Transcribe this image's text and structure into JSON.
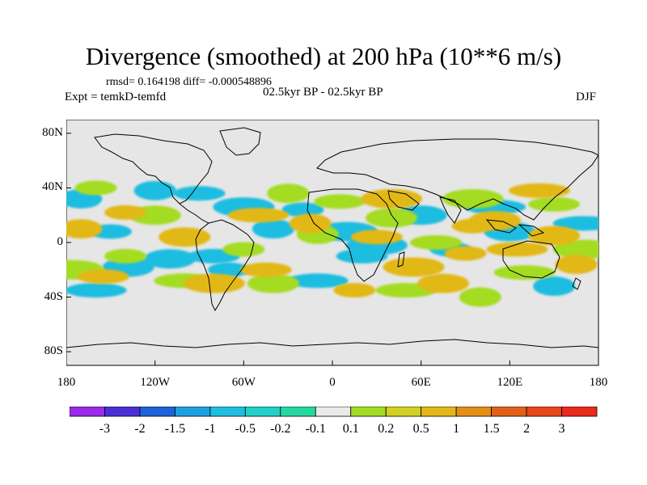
{
  "title": "Divergence (smoothed) at 200 hPa (10**6 m/s)",
  "stats": {
    "rmsd_label": "rmsd= 0.164198",
    "diff_label": "diff= -0.000548896"
  },
  "experiment": "Expt = temkD-temfd",
  "period": "02.5kyr BP - 02.5kyr BP",
  "season": "DJF",
  "axes": {
    "lat_labels": [
      "80N",
      "40N",
      "0",
      "40S",
      "80S"
    ],
    "lon_labels": [
      "180",
      "120W",
      "60W",
      "0",
      "60E",
      "120E",
      "180"
    ]
  },
  "colorbar": {
    "labels": [
      "-3",
      "-2",
      "-1.5",
      "-1",
      "-0.5",
      "-0.2",
      "-0.1",
      "0.1",
      "0.2",
      "0.5",
      "1",
      "1.5",
      "2",
      "3"
    ],
    "colors": [
      "#9b2be8",
      "#4b30d8",
      "#1f62d8",
      "#1f9ee0",
      "#1fbde0",
      "#22d0c8",
      "#25d8a0",
      "#eaeaea",
      "#a4dc22",
      "#d2d020",
      "#e2b818",
      "#e28e18",
      "#e2601a",
      "#e8461c",
      "#ea2a1a"
    ]
  },
  "map": {
    "background": "#e6e6e6",
    "fields": {
      "cyan_bands": [
        [
          -150,
          8
        ],
        [
          -138,
          -18
        ],
        [
          -160,
          -35
        ],
        [
          -120,
          38
        ],
        [
          -90,
          36
        ],
        [
          -60,
          26
        ],
        [
          -20,
          24
        ],
        [
          60,
          20
        ],
        [
          110,
          26
        ],
        [
          -40,
          10
        ],
        [
          20,
          -10
        ],
        [
          30,
          -2
        ],
        [
          -70,
          -20
        ],
        [
          -110,
          -12
        ],
        [
          170,
          14
        ],
        [
          150,
          -32
        ],
        [
          -80,
          -10
        ],
        [
          10,
          8
        ],
        [
          80,
          -5
        ],
        [
          120,
          8
        ],
        [
          -10,
          -28
        ],
        [
          -170,
          32
        ]
      ],
      "green_bands": [
        [
          -160,
          40
        ],
        [
          -120,
          20
        ],
        [
          -100,
          -28
        ],
        [
          -30,
          36
        ],
        [
          5,
          30
        ],
        [
          95,
          32
        ],
        [
          -140,
          -10
        ],
        [
          -40,
          -30
        ],
        [
          50,
          -35
        ],
        [
          100,
          -40
        ],
        [
          150,
          28
        ],
        [
          170,
          -5
        ],
        [
          -60,
          -5
        ],
        [
          40,
          18
        ],
        [
          130,
          -22
        ],
        [
          -10,
          6
        ],
        [
          70,
          0
        ],
        [
          -175,
          -20
        ]
      ],
      "orange_bands": [
        [
          -140,
          22
        ],
        [
          -100,
          4
        ],
        [
          -50,
          20
        ],
        [
          -15,
          14
        ],
        [
          30,
          4
        ],
        [
          55,
          -18
        ],
        [
          90,
          -8
        ],
        [
          110,
          16
        ],
        [
          140,
          38
        ],
        [
          165,
          -16
        ],
        [
          -155,
          -25
        ],
        [
          -80,
          -30
        ],
        [
          15,
          -35
        ],
        [
          75,
          -30
        ],
        [
          125,
          -5
        ],
        [
          -170,
          10
        ],
        [
          -45,
          -20
        ],
        [
          40,
          32
        ],
        [
          95,
          12
        ],
        [
          150,
          5
        ]
      ]
    }
  }
}
